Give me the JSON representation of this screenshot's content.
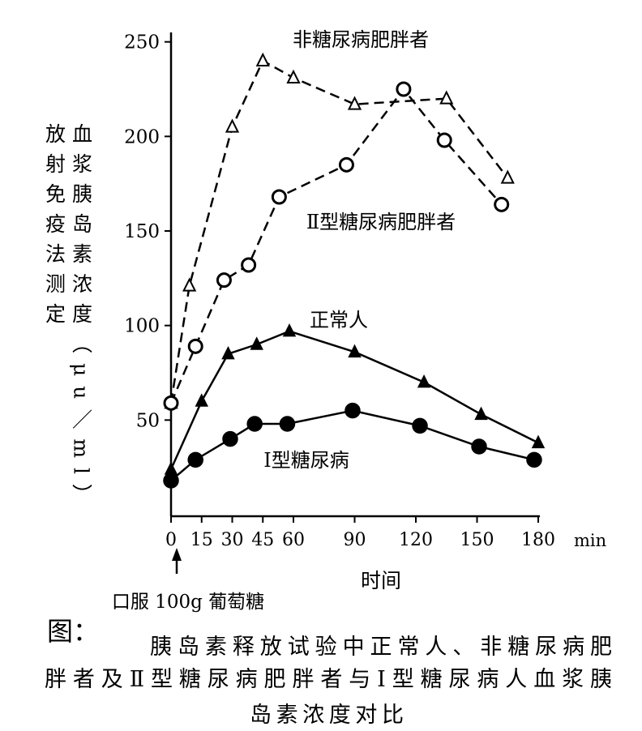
{
  "chart_data": {
    "type": "line",
    "y_axis_label": [
      "血浆胰岛素浓度（μu／ml）",
      "放射免疫法测定"
    ],
    "x_axis_label": "时间",
    "x_unit": "min",
    "annotation": "口服 100g 葡萄糖",
    "caption_prefix": "图：",
    "caption": [
      "胰岛素释放试验中正常人、非糖尿病肥",
      "胖者及Ⅱ型糖尿病肥胖者与Ⅰ型糖尿病人血浆胰",
      "岛素浓度对比"
    ],
    "xlim": [
      0,
      180
    ],
    "xticks": [
      0,
      15,
      30,
      45,
      60,
      90,
      120,
      150,
      180
    ],
    "ylim": [
      0,
      255
    ],
    "yticks": [
      50,
      100,
      150,
      200,
      250
    ],
    "series": [
      {
        "name": "非糖尿病肥胖者",
        "color": "#000000",
        "marker": "triangle-open",
        "dashed": true,
        "x": [
          0,
          9,
          30,
          45,
          60,
          90,
          135,
          165
        ],
        "values": [
          59,
          121,
          205,
          240,
          231,
          217,
          220,
          178
        ]
      },
      {
        "name": "Ⅱ型糖尿病肥胖者",
        "color": "#000000",
        "marker": "circle-open",
        "dashed": true,
        "x": [
          0,
          12,
          26,
          38,
          53,
          86,
          114,
          134,
          162
        ],
        "values": [
          59,
          89,
          124,
          132,
          168,
          185,
          225,
          198,
          164
        ]
      },
      {
        "name": "正常人",
        "color": "#000000",
        "marker": "triangle",
        "dashed": false,
        "x": [
          0,
          15,
          28,
          42,
          58,
          90,
          124,
          152,
          180
        ],
        "values": [
          24,
          60,
          85,
          90,
          97,
          86,
          70,
          53,
          38
        ]
      },
      {
        "name": "Ⅰ型糖尿病",
        "color": "#000000",
        "marker": "circle",
        "dashed": false,
        "x": [
          0,
          12,
          29,
          41,
          57,
          89,
          122,
          151,
          178
        ],
        "values": [
          18,
          29,
          40,
          48,
          48,
          55,
          47,
          36,
          29
        ]
      }
    ]
  }
}
